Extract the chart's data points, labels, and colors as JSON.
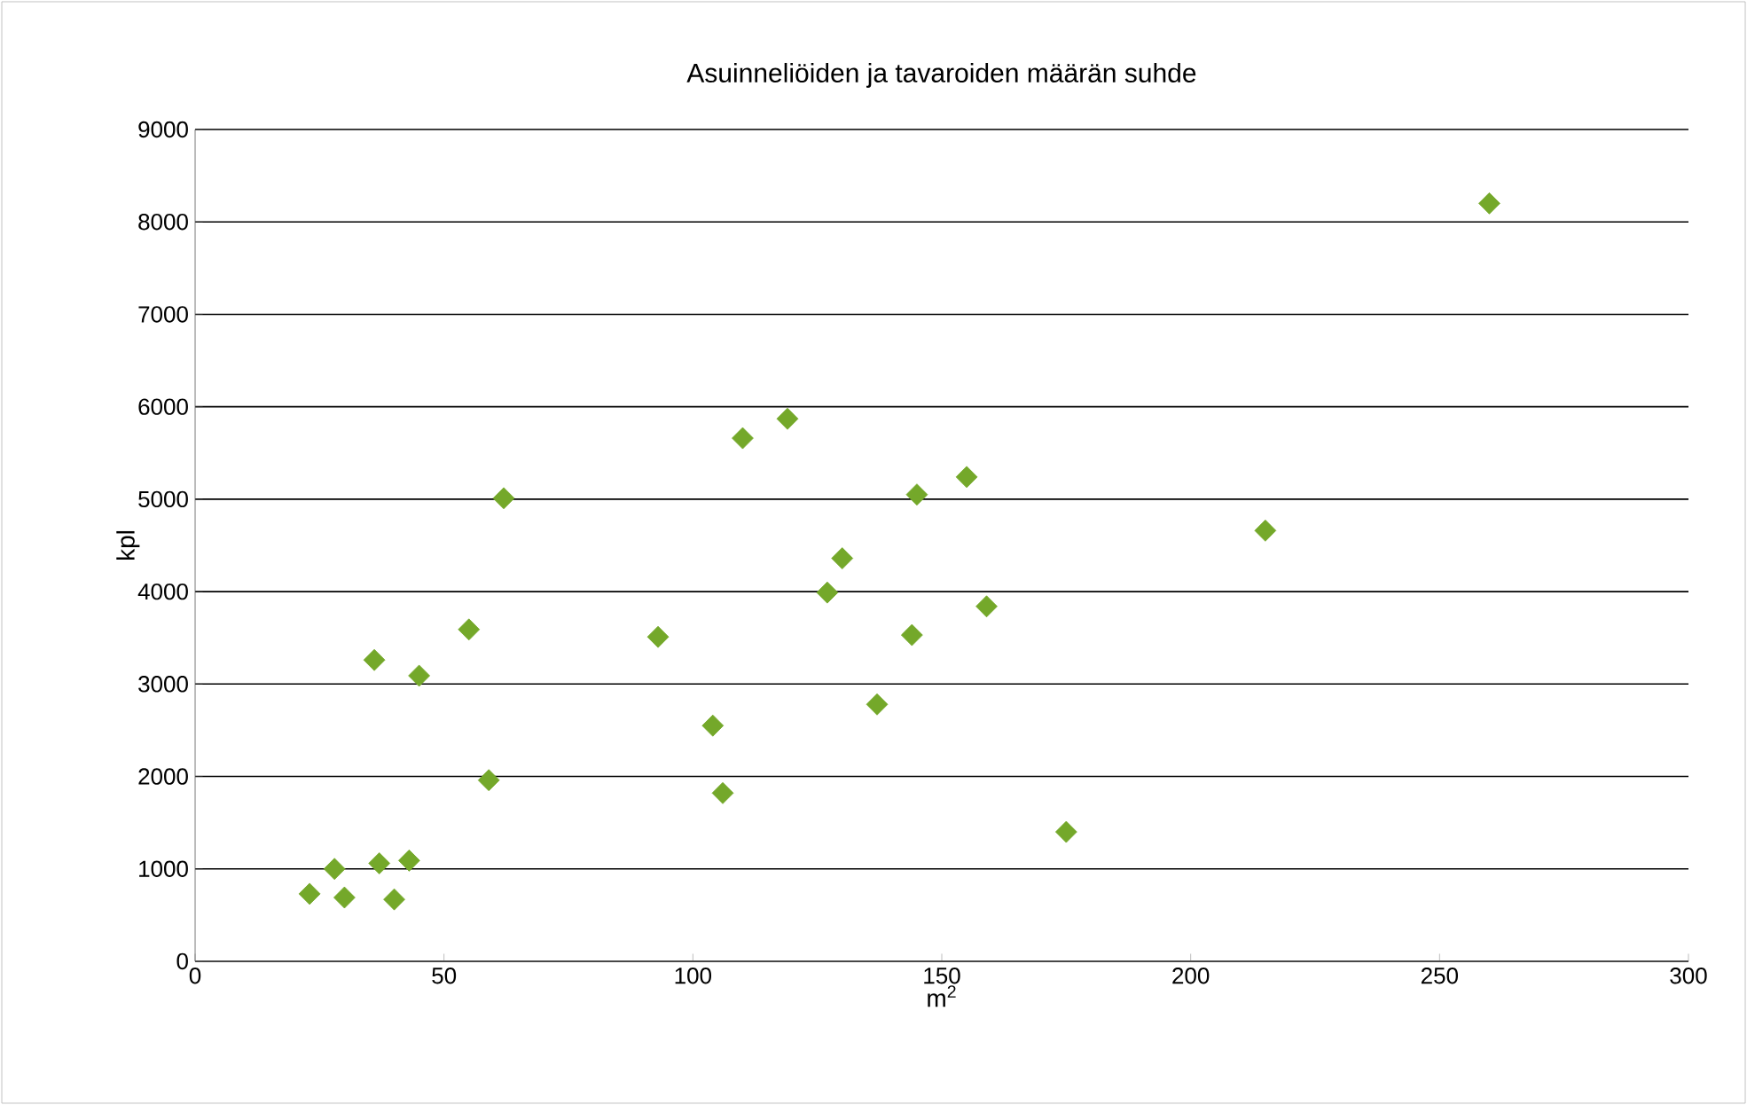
{
  "chart_data": {
    "type": "scatter",
    "title": "Asuinneliöiden ja tavaroiden määrän suhde",
    "xlabel": "m$^{2}$",
    "ylabel": "kpl",
    "x": [
      23,
      28,
      30,
      37,
      40,
      43,
      36,
      45,
      55,
      59,
      62,
      93,
      104,
      106,
      110,
      119,
      127,
      130,
      137,
      144,
      145,
      155,
      159,
      175,
      215,
      260
    ],
    "values": [
      730,
      1000,
      690,
      1060,
      670,
      1090,
      3260,
      3090,
      3590,
      1960,
      5010,
      3510,
      2550,
      1820,
      5660,
      5870,
      3990,
      4360,
      2780,
      3530,
      5050,
      5240,
      3840,
      1400,
      4660,
      8200
    ],
    "color": "#74a82a",
    "marker": "diamond",
    "xlim": [
      0,
      300
    ],
    "ylim": [
      0,
      9000
    ],
    "xticks": [
      0,
      50,
      100,
      150,
      200,
      250,
      300
    ],
    "yticks": [
      0,
      1000,
      2000,
      3000,
      4000,
      5000,
      6000,
      7000,
      8000,
      9000
    ],
    "grid": "y"
  }
}
